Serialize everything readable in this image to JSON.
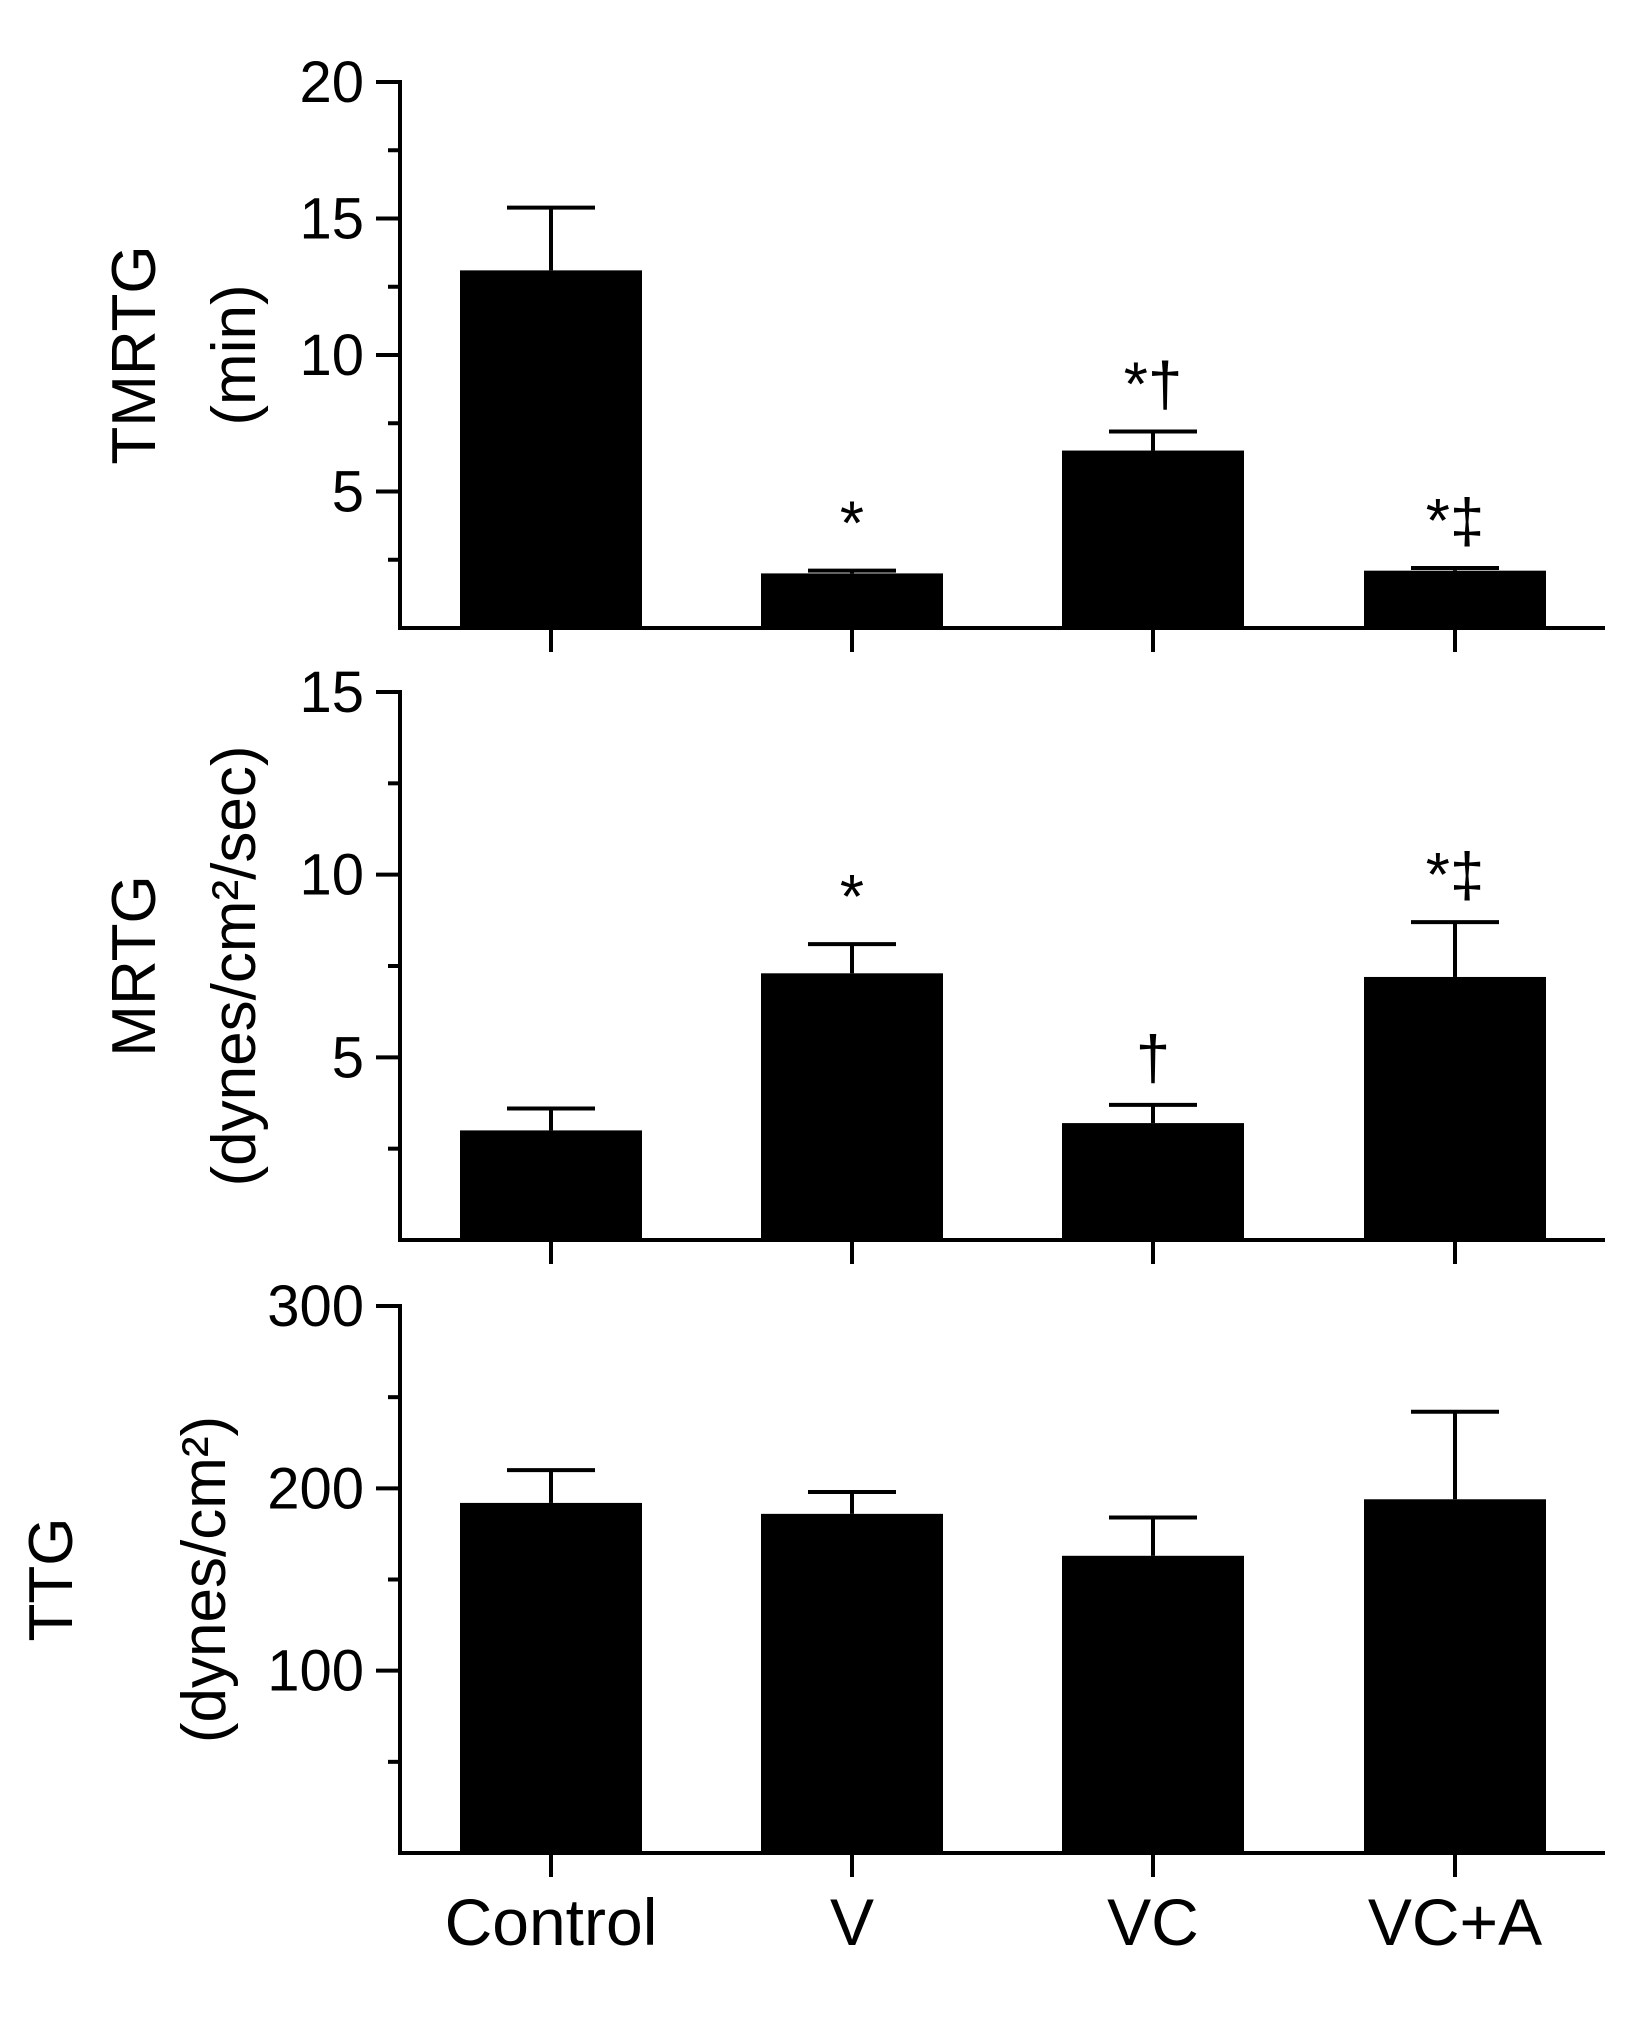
{
  "colors": {
    "bar": "#000000",
    "axis": "#000000",
    "background": "#ffffff"
  },
  "categories": [
    "Control",
    "V",
    "VC",
    "VC+A"
  ],
  "chart_data": [
    {
      "type": "bar",
      "title": "",
      "ylabel": "TMRTG",
      "ylabel_sub": "(min)",
      "ylim": [
        0,
        20
      ],
      "yticks": [
        5,
        10,
        15,
        20
      ],
      "yticks_minor": [
        2.5,
        7.5,
        12.5,
        17.5
      ],
      "categories": [
        "Control",
        "V",
        "VC",
        "VC+A"
      ],
      "values": [
        13.1,
        2.0,
        6.5,
        2.1
      ],
      "errors": [
        2.3,
        0.1,
        0.7,
        0.1
      ],
      "annotations": [
        "",
        "*",
        "*†",
        "*‡"
      ]
    },
    {
      "type": "bar",
      "title": "",
      "ylabel": "MRTG",
      "ylabel_sub": "(dynes/cm²/sec)",
      "ylim": [
        0,
        15
      ],
      "yticks": [
        5,
        10,
        15
      ],
      "yticks_minor": [
        2.5,
        7.5,
        12.5
      ],
      "categories": [
        "Control",
        "V",
        "VC",
        "VC+A"
      ],
      "values": [
        3.0,
        7.3,
        3.2,
        7.2
      ],
      "errors": [
        0.6,
        0.8,
        0.5,
        1.5
      ],
      "annotations": [
        "",
        "*",
        "†",
        "*‡"
      ]
    },
    {
      "type": "bar",
      "title": "",
      "ylabel": "TTG",
      "ylabel_sub": "(dynes/cm²)",
      "ylim": [
        0,
        300
      ],
      "yticks": [
        100,
        200,
        300
      ],
      "yticks_minor": [
        50,
        150,
        250
      ],
      "categories": [
        "Control",
        "V",
        "VC",
        "VC+A"
      ],
      "values": [
        192,
        186,
        163,
        194
      ],
      "errors": [
        18,
        12,
        21,
        48
      ],
      "annotations": [
        "",
        "",
        "",
        ""
      ]
    }
  ]
}
